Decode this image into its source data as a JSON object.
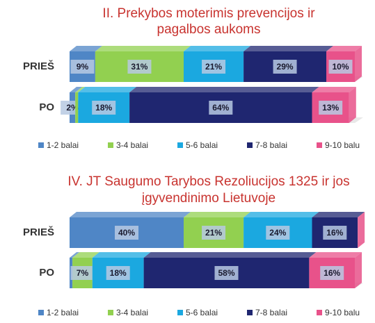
{
  "chart_data": [
    {
      "type": "stacked-bar-horizontal",
      "title": "II. Prekybos moterimis prevencijos ir pagalbos aukoms",
      "categories": [
        "PRIEŠ",
        "PO"
      ],
      "xlim": [
        0,
        100
      ],
      "legend": "bottom",
      "series": [
        {
          "name": "1-2 balai",
          "color": "#4f86c6",
          "values": [
            9,
            2
          ],
          "value_labels": [
            "9%",
            "2%"
          ]
        },
        {
          "name": "3-4 balai",
          "color": "#92d050",
          "values": [
            31,
            1
          ],
          "value_labels": [
            "31%",
            null
          ]
        },
        {
          "name": "5-6 balai",
          "color": "#1ba8e0",
          "values": [
            21,
            18
          ],
          "value_labels": [
            "21%",
            "18%"
          ]
        },
        {
          "name": "7-8 balai",
          "color": "#1f2670",
          "values": [
            29,
            64
          ],
          "value_labels": [
            "29%",
            "64%"
          ]
        },
        {
          "name": "9-10 balu",
          "color": "#e8528a",
          "values": [
            10,
            13
          ],
          "value_labels": [
            "10%",
            "13%"
          ]
        }
      ]
    },
    {
      "type": "stacked-bar-horizontal",
      "title": "IV. JT Saugumo Tarybos Rezoliucijos 1325 ir jos įgyvendinimo Lietuvoje",
      "categories": [
        "PRIEŠ",
        "PO"
      ],
      "xlim": [
        0,
        100
      ],
      "legend": "bottom",
      "series": [
        {
          "name": "1-2 balai",
          "color": "#4f86c6",
          "values": [
            40,
            1
          ],
          "value_labels": [
            "40%",
            null
          ]
        },
        {
          "name": "3-4 balai",
          "color": "#92d050",
          "values": [
            21,
            7
          ],
          "value_labels": [
            "21%",
            "7%"
          ]
        },
        {
          "name": "5-6 balai",
          "color": "#1ba8e0",
          "values": [
            24,
            18
          ],
          "value_labels": [
            "24%",
            "18%"
          ]
        },
        {
          "name": "7-8 balai",
          "color": "#1f2670",
          "values": [
            16,
            58
          ],
          "value_labels": [
            "16%",
            "58%"
          ]
        },
        {
          "name": "9-10 balu",
          "color": "#e8528a",
          "values": [
            0,
            16
          ],
          "value_labels": [
            null,
            "16%"
          ]
        }
      ]
    }
  ]
}
